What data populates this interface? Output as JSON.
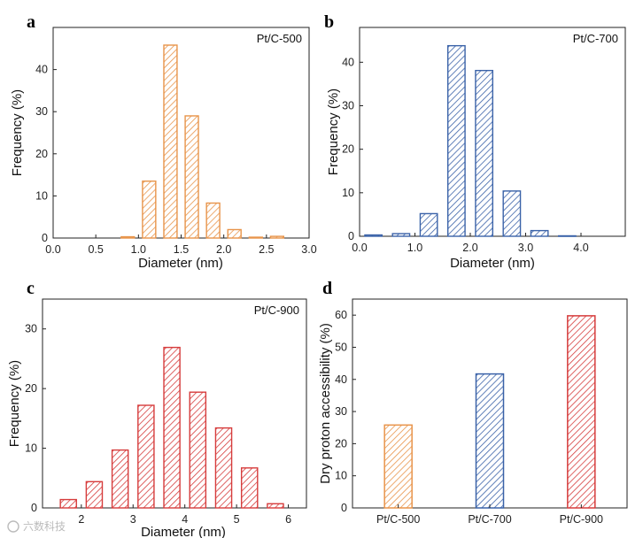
{
  "colors": {
    "orange": "#e8944a",
    "blue": "#3a62a8",
    "red": "#d63c3c"
  },
  "watermark": "六数科技",
  "chart_data": [
    {
      "type": "bar",
      "panel": "a",
      "tag": "Pt/C-500",
      "color": "orange",
      "xlabel": "Diameter (nm)",
      "ylabel": "Frequency (%)",
      "xlim": [
        0,
        3
      ],
      "ylim": [
        0,
        50
      ],
      "xticks": [
        0,
        0.5,
        1,
        1.5,
        2,
        2.5,
        3
      ],
      "xtick_labels": [
        "0.0",
        "0.5",
        "1.0",
        "1.5",
        "2.0",
        "2.5",
        "3.0"
      ],
      "yticks": [
        0,
        10,
        20,
        30,
        40
      ],
      "bin_width": 0.25,
      "x": [
        0.875,
        1.125,
        1.375,
        1.625,
        1.875,
        2.125,
        2.375,
        2.625
      ],
      "values": [
        0.3,
        13.5,
        45.8,
        29.0,
        8.3,
        2.0,
        0.2,
        0.4
      ]
    },
    {
      "type": "bar",
      "panel": "b",
      "tag": "Pt/C-700",
      "color": "blue",
      "xlabel": "Diameter (nm)",
      "ylabel": "Frequency (%)",
      "xlim": [
        0,
        4.8
      ],
      "ylim": [
        0,
        48
      ],
      "xticks": [
        0,
        1,
        2,
        3,
        4
      ],
      "xtick_labels": [
        "0.0",
        "1.0",
        "2.0",
        "3.0",
        "4.0"
      ],
      "yticks": [
        0,
        10,
        20,
        30,
        40
      ],
      "bin_width": 0.5,
      "x": [
        0.25,
        0.75,
        1.25,
        1.75,
        2.25,
        2.75,
        3.25,
        3.75
      ],
      "values": [
        0.3,
        0.6,
        5.2,
        43.8,
        38.1,
        10.4,
        1.3,
        0.1
      ]
    },
    {
      "type": "bar",
      "panel": "c",
      "tag": "Pt/C-900",
      "color": "red",
      "xlabel": "Diameter (nm)",
      "ylabel": "Frequency (%)",
      "xlim": [
        1.25,
        6.35
      ],
      "ylim": [
        0,
        35
      ],
      "xticks": [
        2,
        3,
        4,
        5,
        6
      ],
      "xtick_labels": [
        "2",
        "3",
        "4",
        "5",
        "6"
      ],
      "yticks": [
        0,
        10,
        20,
        30
      ],
      "bin_width": 0.5,
      "x": [
        1.75,
        2.25,
        2.75,
        3.25,
        3.75,
        4.25,
        4.75,
        5.25,
        5.75
      ],
      "values": [
        1.4,
        4.4,
        9.7,
        17.2,
        26.9,
        19.4,
        13.4,
        6.7,
        0.7
      ]
    },
    {
      "type": "bar",
      "panel": "d",
      "ylabel": "Dry proton accessibility (%)",
      "categories": [
        "Pt/C-500",
        "Pt/C-700",
        "Pt/C-900"
      ],
      "values": [
        25.8,
        41.7,
        59.8
      ],
      "colors": [
        "orange",
        "blue",
        "red"
      ],
      "ylim": [
        0,
        65
      ],
      "yticks": [
        0,
        10,
        20,
        30,
        40,
        50,
        60
      ]
    }
  ]
}
